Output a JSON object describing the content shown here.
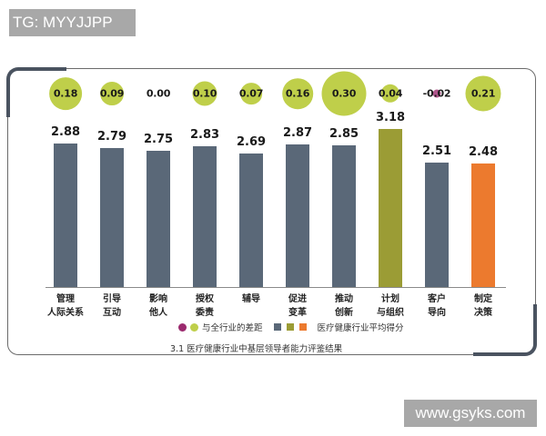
{
  "watermarks": {
    "top_left": "TG: MYYJJPP",
    "bottom_right": "www.gsyks.com"
  },
  "colors": {
    "bar_default": "#5a6878",
    "bar_highlight_green": "#9b9c35",
    "bar_highlight_orange": "#ec7a2e",
    "bubble_positive": "#bfcf4a",
    "bubble_negative": "#9b2a6e",
    "frame_accent": "#4a5360"
  },
  "chart_data": {
    "type": "bar",
    "title": "3.1 医疗健康行业中基层领导者能力评鉴结果",
    "xlabel": "",
    "ylabel": "",
    "grid": false,
    "legend_position": "bottom",
    "categories": [
      "管理人际关系",
      "引导互动",
      "影响他人",
      "授权委责",
      "辅导",
      "促进变革",
      "推动创新",
      "计划与组织",
      "客户导向",
      "制定决策"
    ],
    "category_lines": [
      [
        "管理",
        "人际关系"
      ],
      [
        "引导",
        "互动"
      ],
      [
        "影响",
        "他人"
      ],
      [
        "授权",
        "委责"
      ],
      [
        "辅导",
        ""
      ],
      [
        "促进",
        "变革"
      ],
      [
        "推动",
        "创新"
      ],
      [
        "计划",
        "与组织"
      ],
      [
        "客户",
        "导向"
      ],
      [
        "制定",
        "决策"
      ]
    ],
    "series": [
      {
        "name": "医疗健康行业平均得分",
        "values": [
          2.88,
          2.79,
          2.75,
          2.83,
          2.69,
          2.87,
          2.85,
          3.18,
          2.51,
          2.48
        ],
        "value_labels": [
          "2.88",
          "2.79",
          "2.75",
          "2.83",
          "2.69",
          "2.87",
          "2.85",
          "3.18",
          "2.51",
          "2.48"
        ],
        "bar_colors": [
          "#5a6878",
          "#5a6878",
          "#5a6878",
          "#5a6878",
          "#5a6878",
          "#5a6878",
          "#5a6878",
          "#9b9c35",
          "#5a6878",
          "#ec7a2e"
        ]
      },
      {
        "name": "与全行业的差距",
        "values": [
          0.18,
          0.09,
          0.0,
          0.1,
          0.07,
          0.16,
          0.3,
          0.04,
          -0.02,
          0.21
        ],
        "value_labels": [
          "0.18",
          "0.09",
          "0.00",
          "0.10",
          "0.07",
          "0.16",
          "0.30",
          "0.04",
          "-0.02",
          "0.21"
        ],
        "marker": "bubble"
      }
    ],
    "legend": [
      {
        "label": "与全行业的差距",
        "swatches": [
          "#9b2a6e",
          "#bfcf4a"
        ],
        "shape": "circle"
      },
      {
        "label": "医疗健康行业平均得分",
        "swatches": [
          "#5a6878",
          "#9b9c35",
          "#ec7a2e"
        ],
        "shape": "square"
      }
    ],
    "ylim": [
      0,
      3.5
    ]
  }
}
